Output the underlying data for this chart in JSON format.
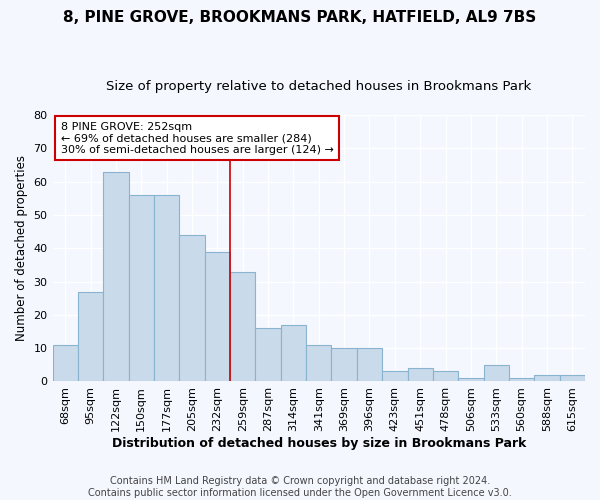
{
  "title": "8, PINE GROVE, BROOKMANS PARK, HATFIELD, AL9 7BS",
  "subtitle": "Size of property relative to detached houses in Brookmans Park",
  "xlabel": "Distribution of detached houses by size in Brookmans Park",
  "ylabel": "Number of detached properties",
  "categories": [
    "68sqm",
    "95sqm",
    "122sqm",
    "150sqm",
    "177sqm",
    "205sqm",
    "232sqm",
    "259sqm",
    "287sqm",
    "314sqm",
    "341sqm",
    "369sqm",
    "396sqm",
    "423sqm",
    "451sqm",
    "478sqm",
    "506sqm",
    "533sqm",
    "560sqm",
    "588sqm",
    "615sqm"
  ],
  "values": [
    11,
    27,
    63,
    56,
    56,
    44,
    39,
    33,
    16,
    17,
    11,
    10,
    10,
    3,
    4,
    3,
    1,
    5,
    1,
    2,
    2
  ],
  "bar_color": "#c9daea",
  "bar_edge_color": "#88b4d0",
  "background_color": "#f5f7ff",
  "grid_color": "#ffffff",
  "vline_color": "#cc0000",
  "vline_index": 7,
  "annotation_line1": "8 PINE GROVE: 252sqm",
  "annotation_line2": "← 69% of detached houses are smaller (284)",
  "annotation_line3": "30% of semi-detached houses are larger (124) →",
  "annotation_box_color": "#cc0000",
  "ylim": [
    0,
    80
  ],
  "yticks": [
    0,
    10,
    20,
    30,
    40,
    50,
    60,
    70,
    80
  ],
  "footer1": "Contains HM Land Registry data © Crown copyright and database right 2024.",
  "footer2": "Contains public sector information licensed under the Open Government Licence v3.0.",
  "title_fontsize": 11,
  "subtitle_fontsize": 9.5,
  "xlabel_fontsize": 9,
  "ylabel_fontsize": 8.5,
  "tick_fontsize": 8,
  "annotation_fontsize": 8,
  "footer_fontsize": 7
}
